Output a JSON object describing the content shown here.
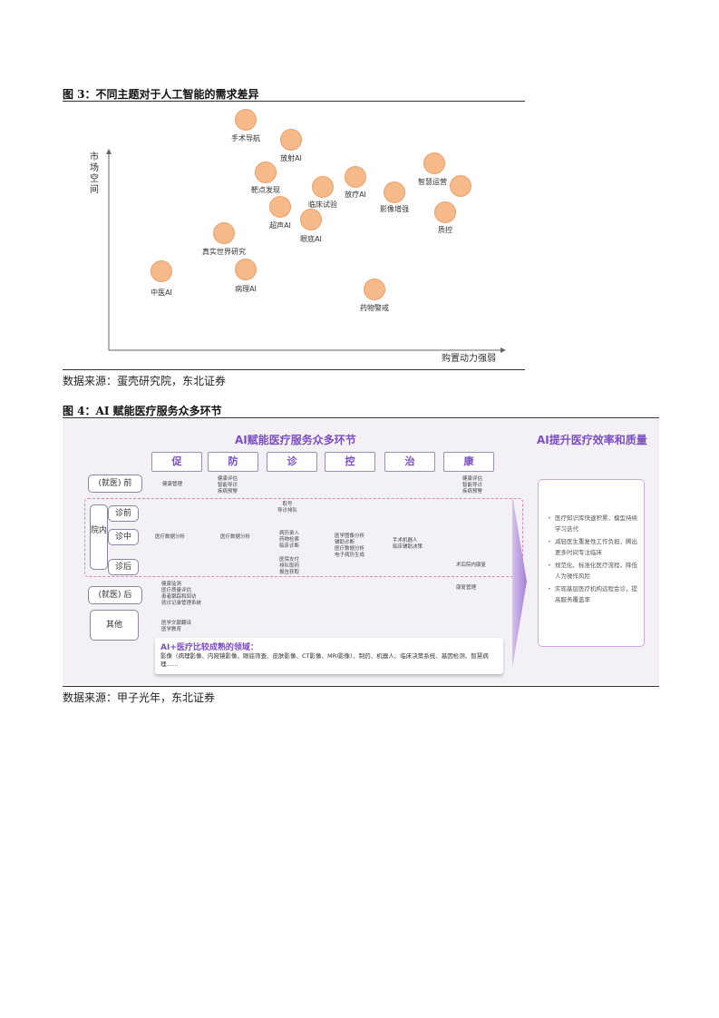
{
  "figure3": {
    "title": "图 3：不同主题对于人工智能的需求差异",
    "ylabel": "市场空间",
    "xlabel": "购置动力强弱",
    "source": "数据来源：蛋壳研究院，东北证券",
    "bubbles": [
      {
        "label": "手术导航"
      },
      {
        "label": "放射AI"
      },
      {
        "label": "靶点发现"
      },
      {
        "label": "临床试验"
      },
      {
        "label": "放疗AI"
      },
      {
        "label": "影像增强"
      },
      {
        "label": "智慧运营"
      },
      {
        "label": ""
      },
      {
        "label": "质控"
      },
      {
        "label": "超声AI"
      },
      {
        "label": "眼底AI"
      },
      {
        "label": "真实世界研究"
      },
      {
        "label": "中医AI"
      },
      {
        "label": "病理AI"
      },
      {
        "label": "药物警戒"
      }
    ]
  },
  "figure4": {
    "title": "图 4：AI 赋能医疗服务众多环节",
    "source": "数据来源：甲子光年，东北证券",
    "heading_left": "AI赋能医疗服务众多环节",
    "heading_right": "AI提升医疗效率和质量",
    "phases": [
      "促",
      "防",
      "诊",
      "控",
      "治",
      "康"
    ],
    "rows": {
      "pre": "(就医) 前",
      "hospital": "院内",
      "diag_before": "诊前",
      "diag_during": "诊中",
      "diag_after": "诊后",
      "post": "(就医) 后",
      "other": "其他"
    },
    "cells": {
      "pre_promote": "健康管理",
      "pre_prevent": "健康评估\n智能导诊\n疾病预警",
      "pre_rehab": "健康评估\n智能导诊\n疾病预警",
      "before_diag": "取号\n导诊排队",
      "during_promote": "医疗数据分析",
      "during_prevent": "医疗数据分析",
      "during_diag": "病历录入\n药物检索\n临床诊断",
      "during_control": "医学图像分析\n辅助诊断\n医疗数据分析\n电子病历生成",
      "during_treat": "手术机器人\n临床辅助决策",
      "after_diag": "医保支付\n排队取药\n报告获取",
      "after_rehab": "术后院内康复",
      "post_promote": "健康监测\n医疗质量评估\n患者跟踪和回访\n就诊记录管理系统",
      "post_rehab": "康复管理",
      "other_promote": "医学文献翻译\n医学教育"
    },
    "mature_title": "AI+医疗比较成熟的领域：",
    "mature_text": "影像（病理影像、内窥镜影像、眼底筛查、皮肤影像、CT影像、MRI影像）、制药、机器人、临床决策系统、基因检测、智慧病理……",
    "benefits": [
      "医疗知识库快速积累，模型持续学习迭代",
      "减轻医生重复性工作负担，腾出更多时间专注临床",
      "规范化、标准化医疗流程，降低人为操作风险",
      "实现基层医疗机构远程会诊，提高服务覆盖率"
    ]
  }
}
